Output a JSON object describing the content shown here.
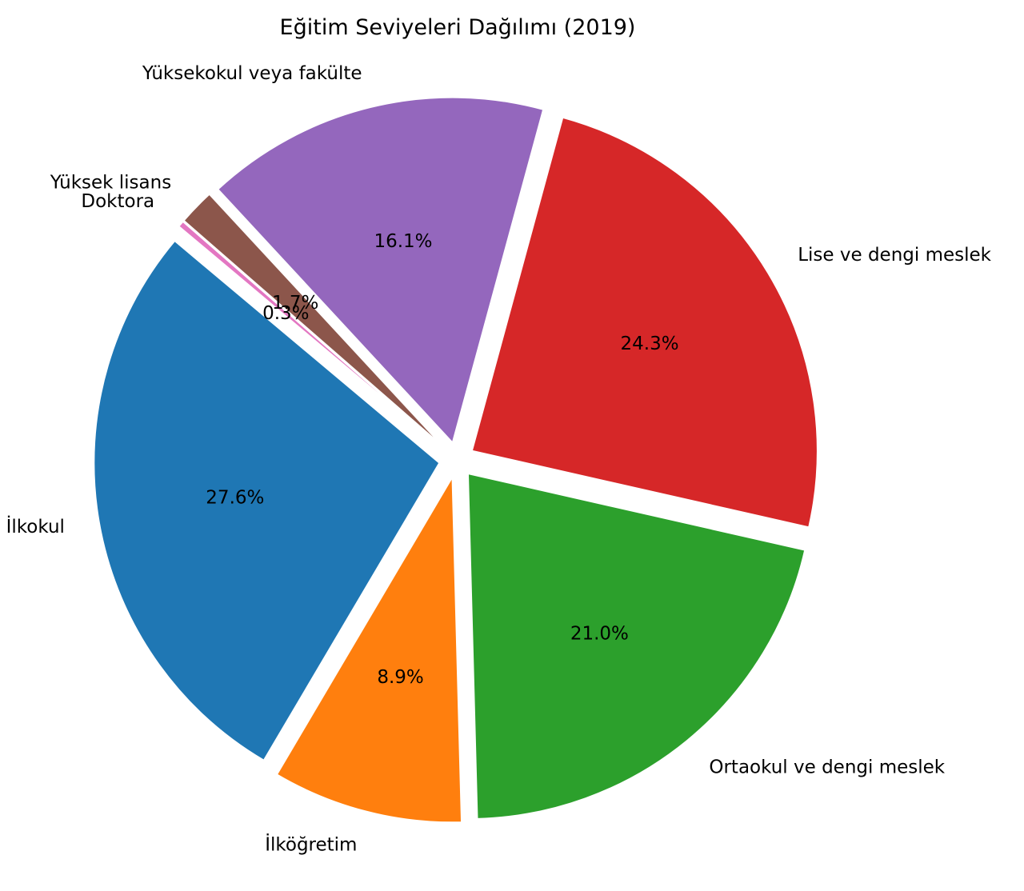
{
  "chart_data": {
    "type": "pie",
    "title": "Eğitim Seviyeleri Dağılımı (2019)",
    "categories": [
      "İlkokul",
      "İlköğretim",
      "Ortaokul ve dengi meslek",
      "Lise ve dengi meslek",
      "Yüksekokul veya fakülte",
      "Yüksek lisans",
      "Doktora"
    ],
    "values": [
      27.6,
      8.9,
      21.0,
      24.3,
      16.1,
      1.7,
      0.3
    ],
    "value_labels": [
      "27.6%",
      "8.9%",
      "21.0%",
      "24.3%",
      "16.1%",
      "1.7%",
      "0.3%"
    ],
    "colors": [
      "#1f77b4",
      "#ff7f0e",
      "#2ca02c",
      "#d62728",
      "#9467bd",
      "#8c564b",
      "#e377c2"
    ],
    "start_angle_deg": 140,
    "direction": "counterclockwise",
    "exploded": true,
    "legend": "none"
  }
}
